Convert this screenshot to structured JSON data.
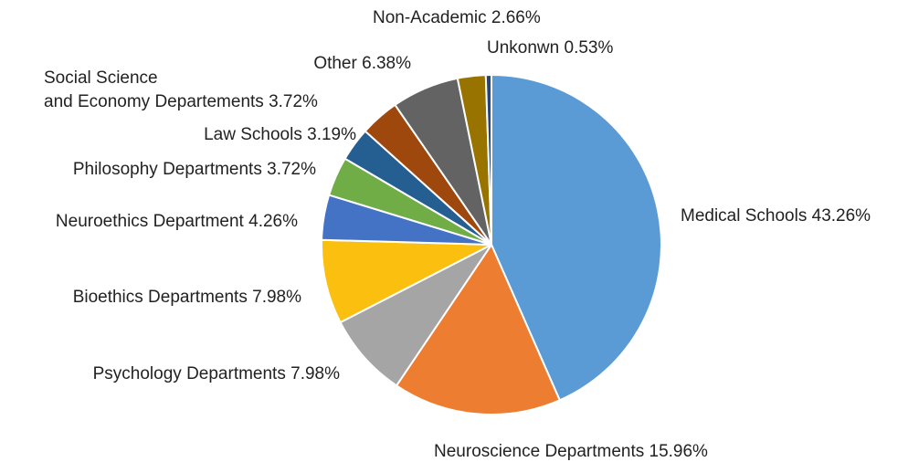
{
  "chart_data": {
    "type": "pie",
    "categories": [
      "Medical Schools",
      "Neuroscience Departments",
      "Psychology Departments",
      "Bioethics Departments",
      "Neuroethics Department",
      "Philosophy Departments",
      "Law Schools",
      "Social Science\nand Economy Departements",
      "Other",
      "Non-Academic",
      "Unkonwn"
    ],
    "values": [
      43.26,
      15.96,
      7.98,
      7.98,
      4.26,
      3.72,
      3.19,
      3.72,
      6.38,
      2.66,
      0.53
    ],
    "value_labels": [
      "43.26%",
      "15.96%",
      "7.98%",
      "7.98%",
      "4.26%",
      "3.72%",
      "3.19%",
      "3.72%",
      "6.38%",
      "2.66%",
      "0.53%"
    ],
    "colors": [
      "#5b9bd5",
      "#ed7d31",
      "#a5a5a5",
      "#fbbf10",
      "#4472c4",
      "#70ad47",
      "#255e91",
      "#9e480e",
      "#636363",
      "#997300",
      "#264478"
    ]
  }
}
